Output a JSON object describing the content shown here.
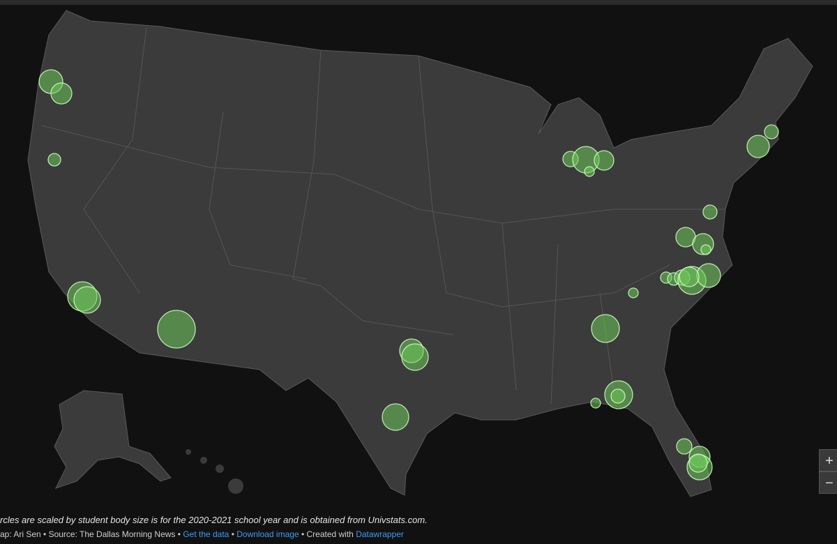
{
  "caption": "rcles are scaled by student body size is for the 2020-2021 school year and is obtained from Univstats.com.",
  "credits": {
    "prefix": "ap: Ari Sen • Source: The Dallas Morning News • ",
    "get_data": "Get the data",
    "sep": " • ",
    "download": "Download image",
    "created_with": " • Created with ",
    "datawrapper": "Datawrapper"
  },
  "zoom": {
    "in": "+",
    "out": "−"
  }
}
